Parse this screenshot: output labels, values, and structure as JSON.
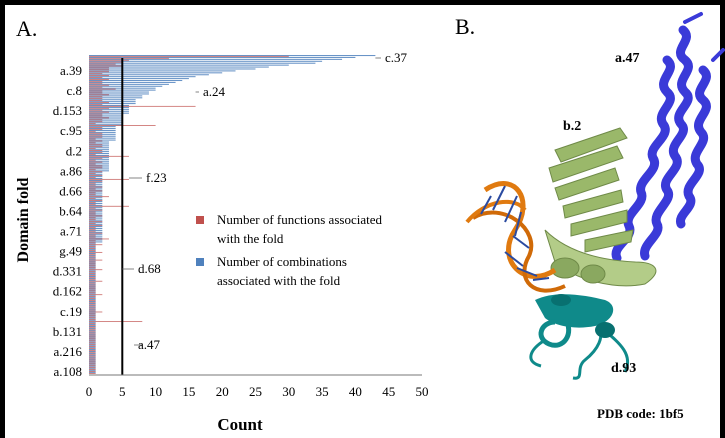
{
  "panels": [
    {
      "label": "A."
    },
    {
      "label": "B."
    }
  ],
  "chart_data": {
    "type": "bar",
    "orientation": "horizontal",
    "xlabel": "Count",
    "ylabel": "Domain fold",
    "xlim": [
      0,
      50
    ],
    "xticks": [
      0,
      5,
      10,
      15,
      20,
      25,
      30,
      35,
      40,
      45,
      50
    ],
    "grid": false,
    "threshold_line": 5,
    "category_labels": [
      "a.39",
      "c.8",
      "d.153",
      "c.95",
      "d.2",
      "a.86",
      "d.66",
      "b.64",
      "a.71",
      "g.49",
      "d.331",
      "d.162",
      "c.19",
      "b.131",
      "a.216",
      "a.108"
    ],
    "legend": {
      "placement": "center-right",
      "entries": [
        {
          "name": "Number of functions associated with the fold",
          "color": "#c0504d"
        },
        {
          "name": "Number of combinations associated with the fold",
          "color": "#4f81bd"
        }
      ]
    },
    "annotations": [
      {
        "text": "c.37",
        "value": 43
      },
      {
        "text": "a.24",
        "value": 16
      },
      {
        "text": "f.23",
        "value": 6
      },
      {
        "text": "d.68",
        "value": 5
      },
      {
        "text": "a.47",
        "value": 8
      }
    ],
    "series": [
      {
        "name": "Number of combinations associated with the fold",
        "values": [
          43,
          40,
          38,
          35,
          34,
          30,
          27,
          25,
          22,
          20,
          18,
          16,
          15,
          14,
          13,
          12,
          11,
          10,
          10,
          9,
          9,
          8,
          8,
          7,
          7,
          7,
          6,
          6,
          6,
          6,
          6,
          5,
          5,
          5,
          5,
          5,
          5,
          4,
          4,
          4,
          4,
          4,
          4,
          4,
          4,
          3,
          3,
          3,
          3,
          3,
          3,
          3,
          3,
          3,
          3,
          3,
          3,
          3,
          3,
          3,
          3,
          2,
          2,
          2,
          2,
          2,
          2,
          2,
          2,
          2,
          2,
          2,
          2,
          2,
          2,
          2,
          2,
          2,
          2,
          2,
          2,
          2,
          2,
          2,
          2,
          2,
          2,
          2,
          2,
          2,
          2,
          2,
          2,
          2,
          2,
          2,
          2,
          2,
          1,
          1,
          1,
          1,
          1,
          1,
          1,
          1,
          1,
          1,
          1,
          1,
          1,
          1,
          1,
          1,
          1,
          1,
          1,
          1,
          1,
          1,
          1,
          1,
          1,
          1,
          1,
          1,
          1,
          1,
          1,
          1,
          1,
          1,
          1,
          1,
          1,
          1,
          1,
          1,
          1,
          1,
          1,
          1,
          1,
          1,
          1,
          1,
          1,
          1,
          1,
          1,
          1,
          1,
          1,
          1,
          1,
          1,
          1,
          1,
          1,
          1,
          1,
          1,
          1,
          1,
          1,
          1
        ]
      },
      {
        "name": "Number of functions associated with the fold",
        "values": [
          30,
          12,
          6,
          5,
          4,
          5,
          3,
          3,
          3,
          2,
          3,
          2,
          3,
          2,
          2,
          3,
          2,
          4,
          2,
          2,
          3,
          2,
          2,
          2,
          3,
          2,
          16,
          3,
          2,
          3,
          2,
          2,
          3,
          2,
          2,
          1,
          10,
          2,
          2,
          1,
          2,
          2,
          2,
          1,
          2,
          1,
          2,
          2,
          1,
          2,
          2,
          1,
          6,
          2,
          1,
          2,
          1,
          2,
          2,
          1,
          2,
          1,
          2,
          1,
          6,
          2,
          1,
          1,
          2,
          1,
          2,
          1,
          1,
          3,
          1,
          2,
          1,
          1,
          6,
          1,
          2,
          1,
          1,
          2,
          1,
          1,
          2,
          1,
          2,
          1,
          1,
          1,
          2,
          1,
          1,
          3,
          1,
          1,
          2,
          1,
          1,
          1,
          2,
          1,
          1,
          1,
          2,
          1,
          1,
          1,
          1,
          2,
          1,
          1,
          1,
          1,
          1,
          2,
          1,
          1,
          1,
          1,
          1,
          1,
          2,
          1,
          1,
          1,
          1,
          1,
          1,
          1,
          1,
          2,
          1,
          1,
          1,
          1,
          8,
          1,
          1,
          1,
          1,
          1,
          1,
          1,
          1,
          1,
          1,
          1,
          1,
          1,
          1,
          1,
          1,
          1,
          1,
          1,
          1,
          1,
          1,
          1,
          1,
          1,
          1,
          1
        ]
      }
    ]
  },
  "structure": {
    "labels": [
      {
        "text": "a.47",
        "key": "a47"
      },
      {
        "text": "b.2",
        "key": "b2"
      },
      {
        "text": "d.93",
        "key": "d93"
      }
    ],
    "pdb_caption": "PDB code: 1bf5",
    "colors": {
      "a47": "#3a3ad8",
      "b2": "#9ab86a",
      "d93": "#0f8a8a",
      "dna_backbone": "#e07a10",
      "dna_base": "#2a4aa0"
    }
  }
}
